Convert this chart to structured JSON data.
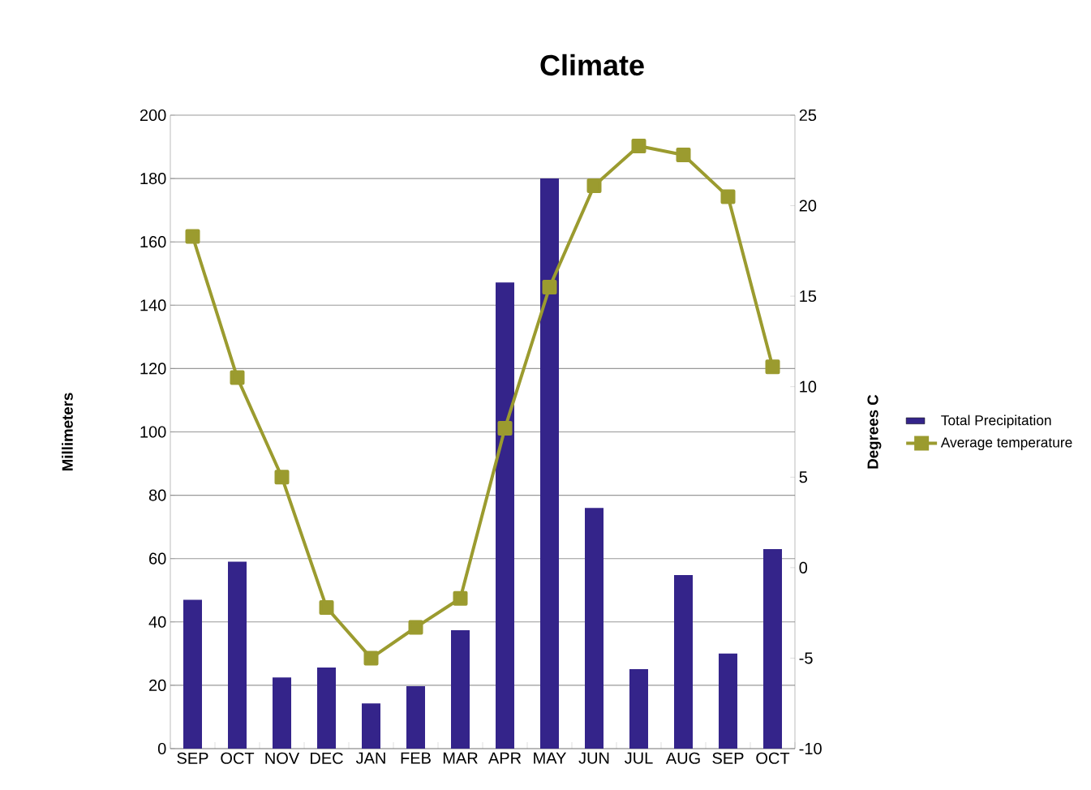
{
  "chart_data": {
    "type": "bar",
    "title": "Climate",
    "ylabel": "Millimeters",
    "y2label": "Degrees C",
    "categories": [
      "SEP",
      "OCT",
      "NOV",
      "DEC",
      "JAN",
      "FEB",
      "MAR",
      "APR",
      "MAY",
      "JUN",
      "JUL",
      "AUG",
      "SEP",
      "OCT"
    ],
    "series": [
      {
        "name": "Total Precipitation",
        "color": "#34248a",
        "values": [
          47,
          59,
          22.5,
          25.6,
          14.3,
          19.7,
          37.4,
          147.2,
          180,
          76,
          25.1,
          54.8,
          30,
          63
        ]
      },
      {
        "name": "Average temperature",
        "type": "line",
        "axis": "y2",
        "color": "#9b9b2f",
        "values": [
          18.3,
          10.5,
          5.0,
          -2.2,
          -5.0,
          -3.3,
          -1.7,
          7.7,
          15.5,
          21.1,
          23.3,
          22.8,
          20.5,
          11.1
        ]
      }
    ],
    "ylim": [
      0,
      200
    ],
    "yticks": [
      0,
      20,
      40,
      60,
      80,
      100,
      120,
      140,
      160,
      180,
      200
    ],
    "y2lim": [
      -10,
      25
    ],
    "y2ticks": [
      -10,
      -5,
      0,
      5,
      10,
      15,
      20,
      25
    ],
    "grid": "y",
    "legend": "right",
    "marker": "square",
    "line_style": "solid"
  }
}
